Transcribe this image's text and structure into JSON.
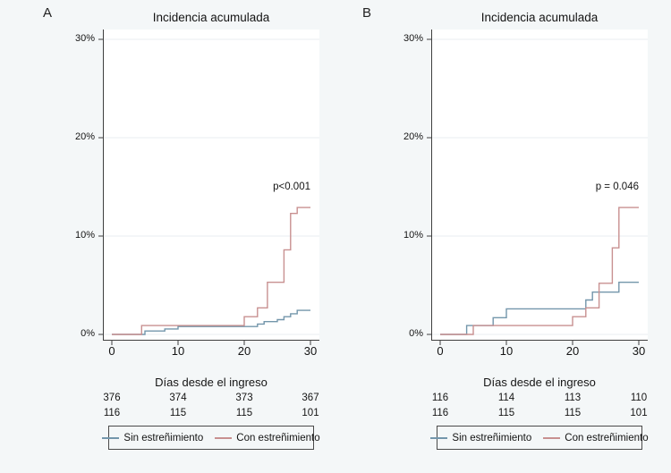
{
  "figure": {
    "background_color": "#f4f7f8",
    "plot_background_color": "#ffffff",
    "grid_color": "#e8eef1",
    "axis_color": "#3f3f3f"
  },
  "legend": {
    "items": [
      {
        "label": "Sin estreñimiento",
        "color": "#7396ab"
      },
      {
        "label": "Con estreñimiento",
        "color": "#c89090"
      }
    ]
  },
  "chart_data": [
    {
      "type": "line",
      "subtype": "step-cumulative-incidence",
      "panel_label": "A",
      "title": "Incidencia acumulada",
      "annotation": "p<0.001",
      "xlabel": "Días desde el ingreso",
      "ylabel": "",
      "xlim": [
        0,
        30
      ],
      "ylim_pct": [
        0,
        30
      ],
      "xticks": [
        0,
        10,
        20,
        30
      ],
      "yticks_pct": [
        0,
        10,
        20,
        30
      ],
      "ytick_labels": [
        "0%",
        "10%",
        "20%",
        "30%"
      ],
      "grid": "horizontal",
      "legend_position": "bottom",
      "series": [
        {
          "name": "Sin estreñimiento",
          "color": "#7396ab",
          "points_day_pct": [
            [
              0,
              0
            ],
            [
              5,
              0.35
            ],
            [
              8,
              0.55
            ],
            [
              10,
              0.8
            ],
            [
              22,
              1.05
            ],
            [
              23,
              1.3
            ],
            [
              25,
              1.5
            ],
            [
              26,
              1.8
            ],
            [
              27,
              2.1
            ],
            [
              28,
              2.45
            ],
            [
              30,
              2.45
            ]
          ]
        },
        {
          "name": "Con estreñimiento",
          "color": "#c89090",
          "points_day_pct": [
            [
              0,
              0
            ],
            [
              4.5,
              0.9
            ],
            [
              20,
              1.8
            ],
            [
              22,
              2.7
            ],
            [
              23.5,
              5.3
            ],
            [
              26,
              8.6
            ],
            [
              27,
              12.3
            ],
            [
              28,
              12.9
            ],
            [
              30,
              12.9
            ]
          ]
        }
      ],
      "at_risk_table": {
        "rows": [
          [
            "376",
            "374",
            "373",
            "367"
          ],
          [
            "116",
            "115",
            "115",
            "101"
          ]
        ]
      }
    },
    {
      "type": "line",
      "subtype": "step-cumulative-incidence",
      "panel_label": "B",
      "title": "Incidencia acumulada",
      "annotation": "p = 0.046",
      "xlabel": "Días desde el ingreso",
      "ylabel": "",
      "xlim": [
        0,
        30
      ],
      "ylim_pct": [
        0,
        30
      ],
      "xticks": [
        0,
        10,
        20,
        30
      ],
      "yticks_pct": [
        0,
        10,
        20,
        30
      ],
      "ytick_labels": [
        "0%",
        "10%",
        "20%",
        "30%"
      ],
      "grid": "horizontal",
      "legend_position": "bottom",
      "series": [
        {
          "name": "Sin estreñimiento",
          "color": "#7396ab",
          "points_day_pct": [
            [
              0,
              0
            ],
            [
              4,
              0.9
            ],
            [
              8,
              1.7
            ],
            [
              10,
              2.6
            ],
            [
              22,
              3.5
            ],
            [
              23,
              4.3
            ],
            [
              27,
              5.3
            ],
            [
              30,
              5.3
            ]
          ]
        },
        {
          "name": "Con estreñimiento",
          "color": "#c89090",
          "points_day_pct": [
            [
              0,
              0
            ],
            [
              5,
              0.9
            ],
            [
              20,
              1.8
            ],
            [
              22,
              2.7
            ],
            [
              24,
              5.2
            ],
            [
              26,
              8.8
            ],
            [
              27,
              12.9
            ],
            [
              30,
              12.9
            ]
          ]
        }
      ],
      "at_risk_table": {
        "rows": [
          [
            "116",
            "114",
            "113",
            "110"
          ],
          [
            "116",
            "115",
            "115",
            "101"
          ]
        ]
      }
    }
  ]
}
